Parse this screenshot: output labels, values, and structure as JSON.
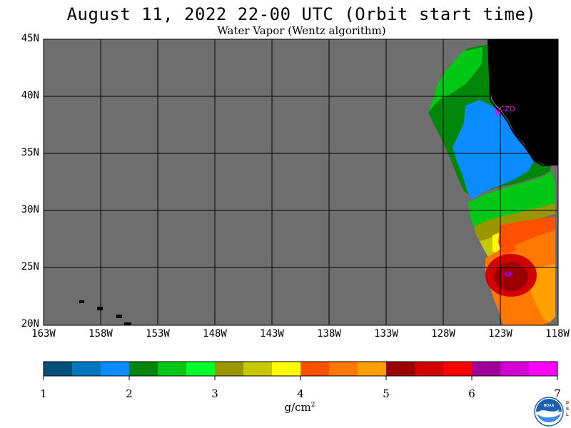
{
  "header": {
    "title": "August 11, 2022  22-00 UTC  (Orbit start time)",
    "subtitle": "Water Vapor (Wentz algorithm)"
  },
  "map": {
    "axes": {
      "lat_labels": [
        "45N",
        "40N",
        "35N",
        "30N",
        "25N",
        "20N"
      ],
      "lon_labels": [
        "163W",
        "158W",
        "153W",
        "148W",
        "143W",
        "138W",
        "133W",
        "128W",
        "123W",
        "118W"
      ],
      "lon_range": [
        -163,
        -118
      ],
      "lat_range": [
        20,
        45
      ]
    },
    "marker_label": "CZD",
    "colors": {
      "no_data": "#6e6e6e",
      "land": "#000000",
      "gridline": "#000000",
      "marker": "#ff00ff"
    }
  },
  "colorbar": {
    "ticks": [
      "1",
      "2",
      "3",
      "4",
      "5",
      "6",
      "7"
    ],
    "unit": "g/cm",
    "unit_superscript": "2",
    "min": 1,
    "max": 7,
    "colors": [
      "#00507a",
      "#0078c0",
      "#0a8cff",
      "#00870a",
      "#00c814",
      "#00ff28",
      "#9a9600",
      "#c8c800",
      "#ffff00",
      "#ff5000",
      "#ff7800",
      "#ffa000",
      "#9a0000",
      "#d20000",
      "#ff0000",
      "#a0009a",
      "#d200d2",
      "#ff00ff"
    ]
  },
  "logo": {
    "noaa_text": "NOAA",
    "psl_text": [
      "P",
      "S",
      "L"
    ]
  }
}
